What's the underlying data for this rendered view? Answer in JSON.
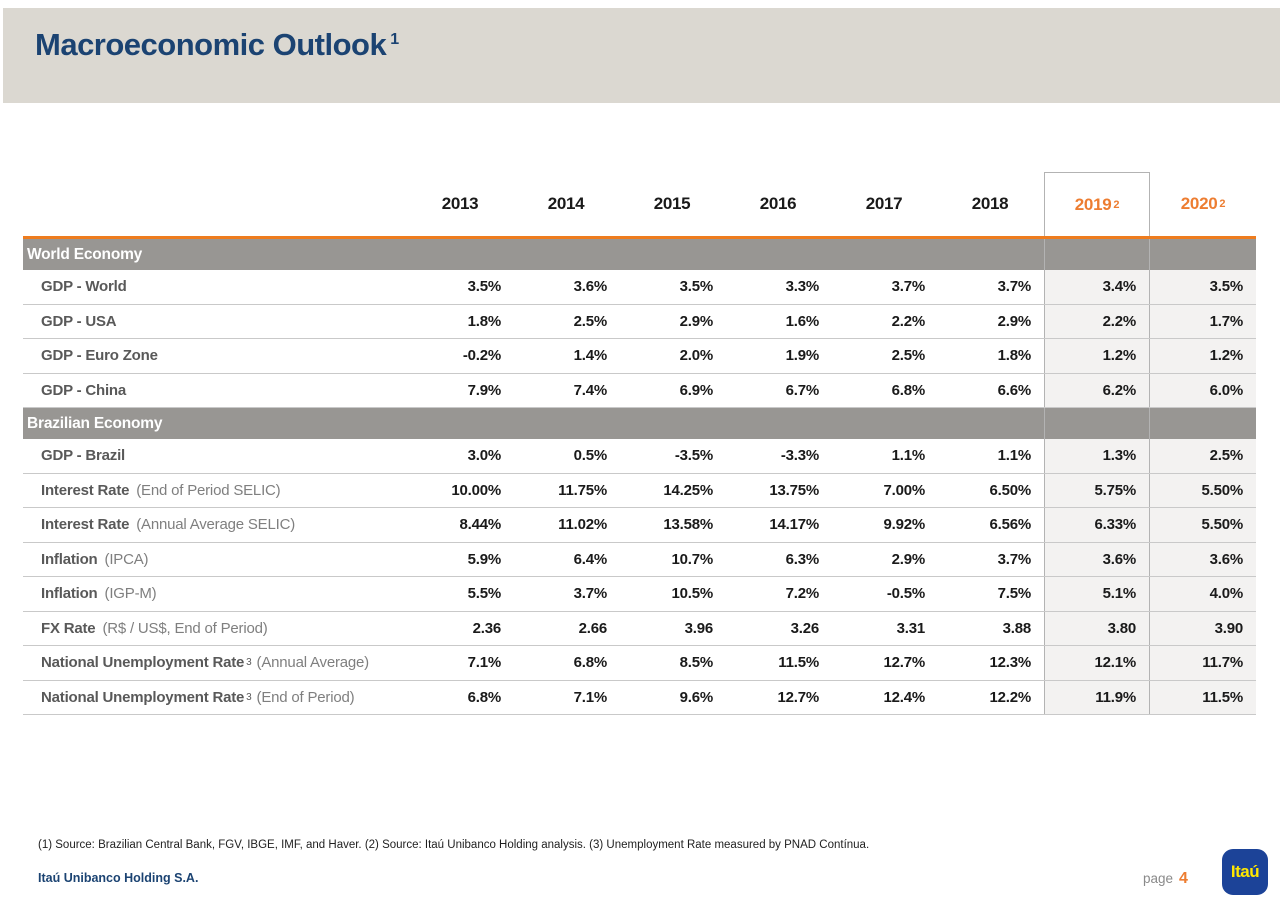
{
  "header": {
    "title": "Macroeconomic Outlook",
    "title_sup": "1"
  },
  "table": {
    "columns": [
      {
        "label": "2013"
      },
      {
        "label": "2014"
      },
      {
        "label": "2015"
      },
      {
        "label": "2016"
      },
      {
        "label": "2017"
      },
      {
        "label": "2018"
      },
      {
        "label": "2019",
        "sup": "2",
        "forecast": true
      },
      {
        "label": "2020",
        "sup": "2",
        "forecast": true
      }
    ],
    "rows": [
      {
        "type": "section",
        "label": "World Economy"
      },
      {
        "type": "data",
        "main": "GDP - World",
        "values": [
          "3.5%",
          "3.6%",
          "3.5%",
          "3.3%",
          "3.7%",
          "3.7%",
          "3.4%",
          "3.5%"
        ]
      },
      {
        "type": "data",
        "main": "GDP - USA",
        "values": [
          "1.8%",
          "2.5%",
          "2.9%",
          "1.6%",
          "2.2%",
          "2.9%",
          "2.2%",
          "1.7%"
        ]
      },
      {
        "type": "data",
        "main": "GDP - Euro Zone",
        "values": [
          "-0.2%",
          "1.4%",
          "2.0%",
          "1.9%",
          "2.5%",
          "1.8%",
          "1.2%",
          "1.2%"
        ]
      },
      {
        "type": "data",
        "main": "GDP - China",
        "values": [
          "7.9%",
          "7.4%",
          "6.9%",
          "6.7%",
          "6.8%",
          "6.6%",
          "6.2%",
          "6.0%"
        ]
      },
      {
        "type": "section",
        "label": "Brazilian Economy"
      },
      {
        "type": "data",
        "main": "GDP - Brazil",
        "values": [
          "3.0%",
          "0.5%",
          "-3.5%",
          "-3.3%",
          "1.1%",
          "1.1%",
          "1.3%",
          "2.5%"
        ]
      },
      {
        "type": "data",
        "main": "Interest Rate",
        "suffix": "(End of Period SELIC)",
        "values": [
          "10.00%",
          "11.75%",
          "14.25%",
          "13.75%",
          "7.00%",
          "6.50%",
          "5.75%",
          "5.50%"
        ]
      },
      {
        "type": "data",
        "main": "Interest Rate",
        "suffix": "(Annual Average SELIC)",
        "values": [
          "8.44%",
          "11.02%",
          "13.58%",
          "14.17%",
          "9.92%",
          "6.56%",
          "6.33%",
          "5.50%"
        ]
      },
      {
        "type": "data",
        "main": "Inflation",
        "suffix": "(IPCA)",
        "values": [
          "5.9%",
          "6.4%",
          "10.7%",
          "6.3%",
          "2.9%",
          "3.7%",
          "3.6%",
          "3.6%"
        ]
      },
      {
        "type": "data",
        "main": "Inflation",
        "suffix": "(IGP-M)",
        "values": [
          "5.5%",
          "3.7%",
          "10.5%",
          "7.2%",
          "-0.5%",
          "7.5%",
          "5.1%",
          "4.0%"
        ]
      },
      {
        "type": "data",
        "main": "FX Rate",
        "suffix": "(R$ / US$, End of Period)",
        "values": [
          "2.36",
          "2.66",
          "3.96",
          "3.26",
          "3.31",
          "3.88",
          "3.80",
          "3.90"
        ]
      },
      {
        "type": "data",
        "main": "National Unemployment Rate",
        "sup": "3",
        "suffix": "(Annual Average)",
        "values": [
          "7.1%",
          "6.8%",
          "8.5%",
          "11.5%",
          "12.7%",
          "12.3%",
          "12.1%",
          "11.7%"
        ]
      },
      {
        "type": "data",
        "main": "National Unemployment Rate",
        "sup": "3",
        "suffix": "(End of Period)",
        "values": [
          "6.8%",
          "7.1%",
          "9.6%",
          "12.7%",
          "12.4%",
          "12.2%",
          "11.9%",
          "11.5%"
        ]
      }
    ]
  },
  "footnote": "(1) Source: Brazilian Central Bank, FGV, IBGE, IMF, and Haver. (2) Source: Itaú Unibanco Holding analysis. (3) Unemployment Rate measured by PNAD Contínua.",
  "footer": {
    "company": "Itaú Unibanco Holding S.A.",
    "page_label": "page",
    "page_number": "4",
    "logo_text": "Itaú"
  },
  "colors": {
    "accent_orange": "#ed7d31",
    "rule_orange": "#ee7c1e",
    "title_navy": "#1b4372",
    "section_band_gray": "#989693",
    "header_band_beige": "#dbd8d1",
    "forecast_cell_bg": "#f3f2f1",
    "logo_blue": "#1c4398",
    "logo_yellow": "#ffe800"
  }
}
